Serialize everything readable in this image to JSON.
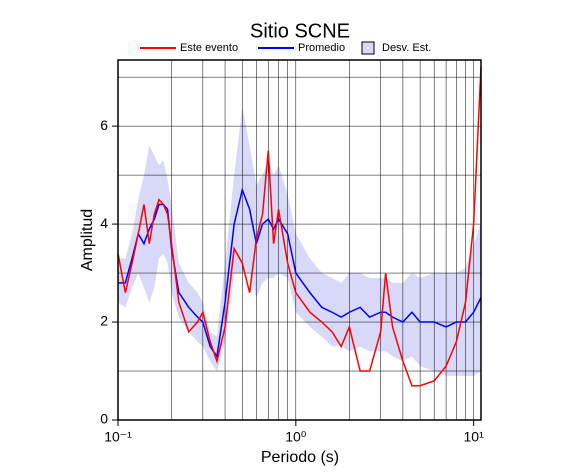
{
  "chart_data": {
    "type": "line",
    "title": "Sitio SCNE",
    "x_label": "Periodo (s)",
    "y_label": "Amplitud",
    "x_log": true,
    "grid": true,
    "xlim": [
      0.1,
      11
    ],
    "ylim": [
      0,
      7.35
    ],
    "xticks": [
      {
        "value": 0.1,
        "label": "10⁻¹"
      },
      {
        "value": 1,
        "label": "10⁰"
      },
      {
        "value": 10,
        "label": "10¹"
      }
    ],
    "yticks": [
      0,
      2,
      4,
      6
    ],
    "x": [
      0.1,
      0.11,
      0.12,
      0.13,
      0.14,
      0.15,
      0.16,
      0.17,
      0.18,
      0.19,
      0.2,
      0.22,
      0.25,
      0.28,
      0.3,
      0.33,
      0.36,
      0.4,
      0.45,
      0.5,
      0.55,
      0.6,
      0.65,
      0.7,
      0.75,
      0.8,
      0.9,
      1.0,
      1.2,
      1.4,
      1.6,
      1.8,
      2.0,
      2.3,
      2.6,
      3.0,
      3.2,
      3.5,
      4.0,
      4.5,
      5,
      6,
      7,
      8,
      9,
      10,
      11
    ],
    "series": [
      {
        "name": "Este evento",
        "color": "#ff0000",
        "values": [
          3.4,
          2.6,
          3.2,
          3.8,
          4.4,
          3.6,
          4.2,
          4.5,
          4.4,
          4.2,
          3.6,
          2.4,
          1.8,
          2.0,
          2.2,
          1.6,
          1.2,
          1.9,
          3.5,
          3.2,
          2.6,
          3.7,
          4.2,
          5.5,
          3.6,
          4.3,
          3.2,
          2.6,
          2.2,
          2.0,
          1.8,
          1.5,
          1.9,
          1.0,
          1.0,
          1.8,
          3.0,
          1.9,
          1.2,
          0.7,
          0.7,
          0.8,
          1.1,
          1.6,
          2.4,
          4.0,
          7.2
        ]
      },
      {
        "name": "Promedio",
        "color": "#0000ff",
        "values": [
          2.8,
          2.8,
          3.3,
          3.8,
          3.6,
          3.9,
          4.1,
          4.4,
          4.4,
          4.3,
          3.5,
          2.6,
          2.3,
          2.1,
          2.0,
          1.5,
          1.3,
          2.4,
          4.0,
          4.7,
          4.3,
          3.6,
          4.0,
          4.1,
          3.9,
          4.1,
          3.8,
          3.0,
          2.6,
          2.3,
          2.2,
          2.1,
          2.2,
          2.3,
          2.1,
          2.2,
          2.2,
          2.1,
          2.0,
          2.2,
          2.0,
          2.0,
          1.9,
          2.0,
          2.0,
          2.2,
          2.5
        ]
      },
      {
        "name": "Desv. Est.",
        "color": "#d8d8f8",
        "upper": [
          3.3,
          3.3,
          3.8,
          4.5,
          5.0,
          5.6,
          5.4,
          5.2,
          5.3,
          4.9,
          4.4,
          3.2,
          2.8,
          2.6,
          2.4,
          1.8,
          1.7,
          3.2,
          5.0,
          6.4,
          5.6,
          4.8,
          5.0,
          5.3,
          5.0,
          5.2,
          4.6,
          3.8,
          3.3,
          3.0,
          2.9,
          2.8,
          3.0,
          3.0,
          2.9,
          2.9,
          2.9,
          2.8,
          2.8,
          3.0,
          2.9,
          3.0,
          3.0,
          3.0,
          3.1,
          3.6,
          4.0
        ],
        "lower": [
          2.4,
          2.3,
          2.7,
          3.0,
          2.7,
          2.4,
          2.7,
          3.3,
          3.4,
          3.2,
          2.6,
          2.1,
          1.8,
          1.6,
          1.5,
          1.2,
          1.0,
          1.6,
          3.0,
          3.0,
          3.0,
          2.5,
          2.8,
          2.9,
          2.9,
          3.0,
          2.9,
          2.2,
          1.9,
          1.7,
          1.5,
          1.5,
          1.4,
          1.5,
          1.4,
          1.4,
          1.4,
          1.3,
          1.2,
          1.3,
          1.1,
          1.0,
          0.9,
          0.9,
          0.9,
          0.9,
          1.0
        ]
      }
    ]
  }
}
